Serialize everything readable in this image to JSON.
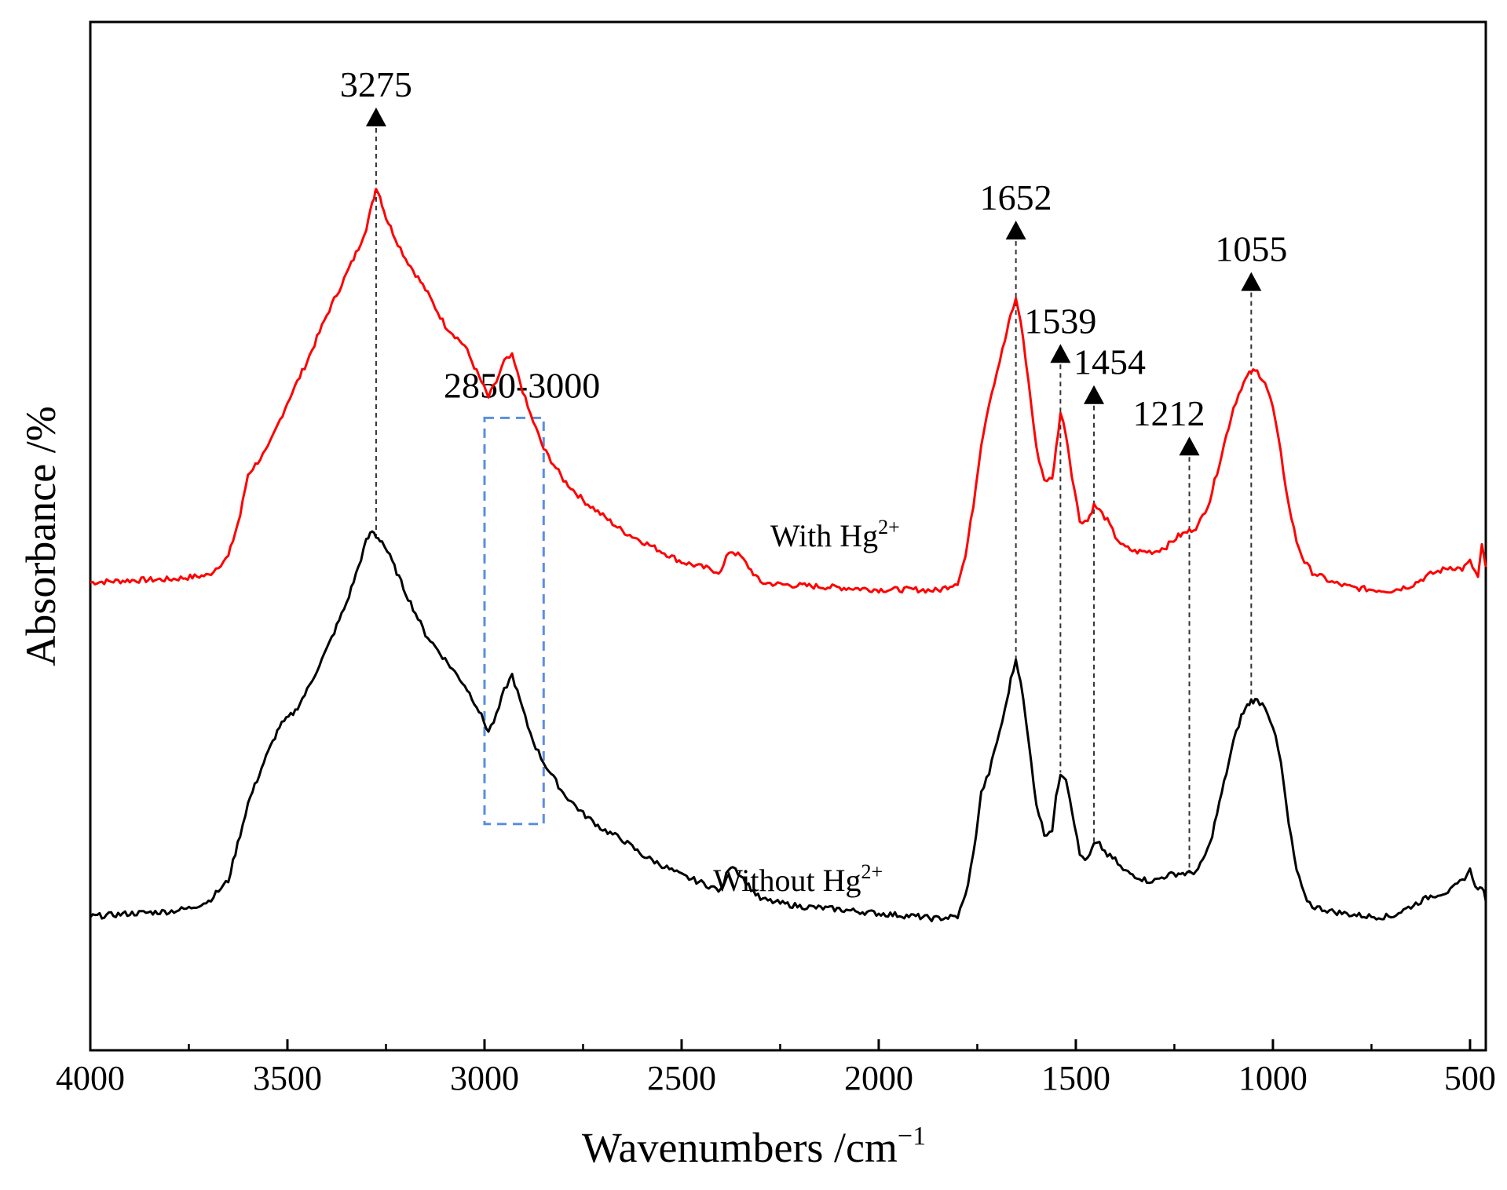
{
  "chart_data": {
    "type": "line",
    "title": "",
    "xlabel_main": "Wavenumbers /cm",
    "xlabel_sup": "−1",
    "ylabel": "Absorbance /%",
    "xlim": [
      4000,
      460
    ],
    "ylim": [
      0,
      100
    ],
    "x_ticks": [
      4000,
      3500,
      3000,
      2500,
      2000,
      1500,
      1000,
      500
    ],
    "x_tick_labels": [
      "4000",
      "3500",
      "3000",
      "2500",
      "2000",
      "1500",
      "1000",
      "500"
    ],
    "colors": {
      "with": "#ff0000",
      "without": "#000000",
      "box": "#5b8fe0"
    },
    "series": [
      {
        "name": "With Hg",
        "label_main": "With Hg",
        "label_sup": "2+",
        "color": "#ff0000",
        "x": [
          4000,
          3900,
          3800,
          3700,
          3650,
          3620,
          3600,
          3550,
          3500,
          3450,
          3400,
          3350,
          3320,
          3300,
          3290,
          3280,
          3275,
          3265,
          3250,
          3220,
          3200,
          3150,
          3100,
          3050,
          3020,
          2990,
          2970,
          2950,
          2930,
          2910,
          2890,
          2870,
          2850,
          2800,
          2750,
          2700,
          2650,
          2600,
          2550,
          2500,
          2450,
          2400,
          2380,
          2370,
          2350,
          2330,
          2300,
          2250,
          2200,
          2100,
          2000,
          1900,
          1850,
          1800,
          1780,
          1760,
          1740,
          1720,
          1700,
          1680,
          1665,
          1652,
          1640,
          1620,
          1600,
          1580,
          1560,
          1550,
          1539,
          1525,
          1510,
          1490,
          1470,
          1454,
          1440,
          1420,
          1400,
          1380,
          1350,
          1320,
          1300,
          1270,
          1240,
          1212,
          1190,
          1160,
          1130,
          1100,
          1080,
          1065,
          1055,
          1040,
          1020,
          1000,
          980,
          960,
          940,
          920,
          900,
          850,
          800,
          750,
          700,
          650,
          600,
          550,
          520,
          500,
          480,
          470,
          460
        ],
        "y": [
          45.5,
          45.7,
          45.8,
          46.2,
          48,
          52,
          56,
          58.5,
          63,
          67,
          71.5,
          75.5,
          78,
          80,
          81.5,
          83,
          84,
          83,
          81,
          78.5,
          77,
          74,
          70.5,
          68.5,
          66,
          63.5,
          65,
          67,
          67.5,
          65,
          62.5,
          60.5,
          58.5,
          55.5,
          53.5,
          52,
          50.5,
          49.5,
          48.5,
          47.5,
          47,
          46.5,
          48.5,
          48.5,
          48,
          47,
          45.5,
          45.3,
          45.2,
          45,
          44.8,
          44.8,
          44.7,
          45.5,
          48,
          53,
          59,
          63,
          66,
          69,
          71.5,
          73,
          71,
          65,
          58.5,
          55.5,
          55.5,
          58.5,
          62,
          60,
          56,
          51.5,
          51.5,
          53,
          52.5,
          51.5,
          50,
          49,
          48.5,
          48.5,
          48.5,
          49,
          50,
          50.5,
          51,
          53.5,
          58,
          62.5,
          64.5,
          65.5,
          66,
          66,
          65,
          62.5,
          58,
          53,
          49.5,
          47.5,
          46.5,
          45.5,
          45,
          44.8,
          44.7,
          45.2,
          46.3,
          47,
          46.8,
          47.5,
          46,
          49,
          47
        ]
      },
      {
        "name": "Without Hg",
        "label_main": "Without Hg",
        "label_sup": "2+",
        "color": "#000000",
        "x": [
          4000,
          3900,
          3800,
          3750,
          3700,
          3650,
          3620,
          3600,
          3560,
          3520,
          3480,
          3450,
          3400,
          3350,
          3320,
          3300,
          3285,
          3275,
          3260,
          3240,
          3200,
          3150,
          3100,
          3050,
          3020,
          2990,
          2970,
          2950,
          2930,
          2910,
          2890,
          2870,
          2850,
          2800,
          2750,
          2700,
          2650,
          2600,
          2550,
          2500,
          2450,
          2400,
          2380,
          2370,
          2350,
          2330,
          2300,
          2250,
          2200,
          2100,
          2000,
          1900,
          1860,
          1800,
          1780,
          1760,
          1740,
          1720,
          1700,
          1680,
          1665,
          1652,
          1640,
          1620,
          1600,
          1580,
          1560,
          1550,
          1539,
          1525,
          1510,
          1490,
          1470,
          1454,
          1440,
          1420,
          1400,
          1380,
          1350,
          1320,
          1300,
          1270,
          1240,
          1212,
          1190,
          1160,
          1130,
          1100,
          1080,
          1065,
          1055,
          1040,
          1020,
          1000,
          980,
          960,
          940,
          920,
          900,
          850,
          800,
          750,
          700,
          650,
          600,
          550,
          520,
          500,
          480,
          470,
          460
        ],
        "y": [
          13,
          13.3,
          13.5,
          13.8,
          14.5,
          16.5,
          21,
          24,
          28,
          31.5,
          33,
          35,
          39,
          43.5,
          47,
          49.5,
          50.5,
          50,
          49.5,
          48,
          44.5,
          40.5,
          38,
          35.5,
          33.5,
          31,
          32.5,
          35,
          36.5,
          34,
          31.5,
          29.5,
          28,
          25,
          23,
          21.5,
          20.5,
          19,
          18,
          17,
          16.3,
          15.5,
          17.8,
          18,
          17,
          16,
          14.7,
          14.3,
          14,
          13.7,
          13.3,
          13,
          12.8,
          13,
          15,
          19,
          25,
          27,
          30,
          33,
          36,
          38,
          36,
          30,
          24,
          21,
          21.5,
          24.5,
          27,
          26.5,
          23.5,
          19,
          18.5,
          20,
          20,
          19,
          18.5,
          17.5,
          17,
          16.5,
          16.5,
          17,
          17.2,
          17.2,
          17.5,
          20,
          25,
          30,
          32.5,
          33.5,
          34,
          34,
          33.5,
          31.5,
          28,
          22,
          17.5,
          15,
          14,
          13.5,
          13.2,
          13,
          13,
          14,
          15,
          15.5,
          16.5,
          17.5,
          15.5,
          16,
          14.5
        ]
      }
    ],
    "peak_annotations": [
      {
        "label": "3275",
        "x": 3275
      },
      {
        "label": "1652",
        "x": 1652
      },
      {
        "label": "1539",
        "x": 1539
      },
      {
        "label": "1454",
        "x": 1454
      },
      {
        "label": "1212",
        "x": 1212
      },
      {
        "label": "1055",
        "x": 1055
      }
    ],
    "region_annotation": {
      "label": "2850-3000",
      "x_range": [
        3000,
        2850
      ]
    }
  }
}
